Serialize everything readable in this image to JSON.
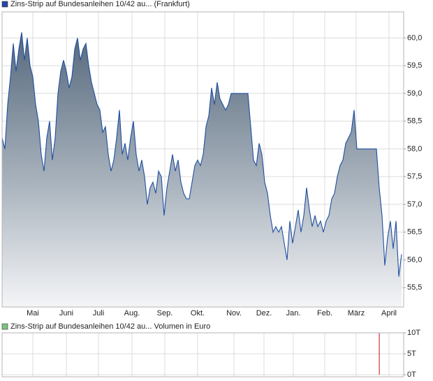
{
  "chart_data": [
    {
      "type": "area",
      "legend": "Zins-Strip auf Bundesanleihen 10/42 au... (Frankfurt)",
      "legend_color": "#2646a8",
      "color": "#1f4ea0",
      "values": [
        58.2,
        58.0,
        58.8,
        59.3,
        59.9,
        59.4,
        59.8,
        60.1,
        59.6,
        60.0,
        59.5,
        59.3,
        58.8,
        58.5,
        57.9,
        57.6,
        58.2,
        58.5,
        57.8,
        58.2,
        59.0,
        59.4,
        59.6,
        59.4,
        59.1,
        59.3,
        59.8,
        60.0,
        59.6,
        59.8,
        59.9,
        59.5,
        59.2,
        59.0,
        58.8,
        58.7,
        58.3,
        58.4,
        57.9,
        57.6,
        57.8,
        58.2,
        58.7,
        57.9,
        58.1,
        57.8,
        58.2,
        58.5,
        57.9,
        57.6,
        57.8,
        57.5,
        57.0,
        57.3,
        57.4,
        57.2,
        57.6,
        57.5,
        56.8,
        57.3,
        57.6,
        57.9,
        57.6,
        57.8,
        57.4,
        57.2,
        57.1,
        57.1,
        57.4,
        57.7,
        57.8,
        57.7,
        57.9,
        58.4,
        58.6,
        59.1,
        58.8,
        59.2,
        58.9,
        58.8,
        58.7,
        58.8,
        59.0,
        59.0,
        59.0,
        59.0,
        59.0,
        59.0,
        59.0,
        58.4,
        57.8,
        57.7,
        58.1,
        57.9,
        57.4,
        57.2,
        56.8,
        56.5,
        56.6,
        56.5,
        56.6,
        56.3,
        56.0,
        56.7,
        56.3,
        56.6,
        56.9,
        56.5,
        56.8,
        57.3,
        56.9,
        56.6,
        56.8,
        56.6,
        56.7,
        56.5,
        56.7,
        56.8,
        57.1,
        57.2,
        57.5,
        57.7,
        57.8,
        58.1,
        58.2,
        58.3,
        58.7,
        58.0,
        58.0,
        58.0,
        58.0,
        58.0,
        58.0,
        58.0,
        58.0,
        57.3,
        56.8,
        55.9,
        56.4,
        56.7,
        56.2,
        56.7,
        55.7,
        56.1
      ],
      "xlim": [
        0,
        143.75
      ],
      "xticks": [
        {
          "value": 11,
          "label": "Mai"
        },
        {
          "value": 23,
          "label": "Juni"
        },
        {
          "value": 34.5,
          "label": "Juli"
        },
        {
          "value": 46.5,
          "label": "Aug."
        },
        {
          "value": 58.25,
          "label": "Sep."
        },
        {
          "value": 70,
          "label": "Okt."
        },
        {
          "value": 83,
          "label": "Nov."
        },
        {
          "value": 93.75,
          "label": "Dez."
        },
        {
          "value": 104.25,
          "label": "Jan."
        },
        {
          "value": 115.5,
          "label": "Feb."
        },
        {
          "value": 126.75,
          "label": "März"
        },
        {
          "value": 138.5,
          "label": "April"
        }
      ],
      "ylim": [
        55.15,
        60.47
      ],
      "yticks": [
        {
          "value": 55.5,
          "label": "55,5"
        },
        {
          "value": 56.0,
          "label": "56,0"
        },
        {
          "value": 56.5,
          "label": "56,5"
        },
        {
          "value": 57.0,
          "label": "57,0"
        },
        {
          "value": 57.5,
          "label": "57,5"
        },
        {
          "value": 58.0,
          "label": "58,0"
        },
        {
          "value": 58.5,
          "label": "58,5"
        },
        {
          "value": 59.0,
          "label": "59,0"
        },
        {
          "value": 59.5,
          "label": "59,5"
        },
        {
          "value": 60.0,
          "label": "60,0"
        }
      ],
      "grid": true
    },
    {
      "type": "bar",
      "legend": "Zins-Strip auf Bundesanleihen 10/42 au... Volumen in Euro",
      "legend_color": "#7cc47c",
      "color": "#c83a3a",
      "x": [
        135
      ],
      "values": [
        10000
      ],
      "xlim": [
        0,
        143.75
      ],
      "ylim": [
        -500,
        10000
      ],
      "yticks": [
        {
          "value": 0,
          "label": "0T"
        },
        {
          "value": 5000,
          "label": "5T"
        },
        {
          "value": 10000,
          "label": "10T"
        }
      ],
      "grid": true
    }
  ]
}
